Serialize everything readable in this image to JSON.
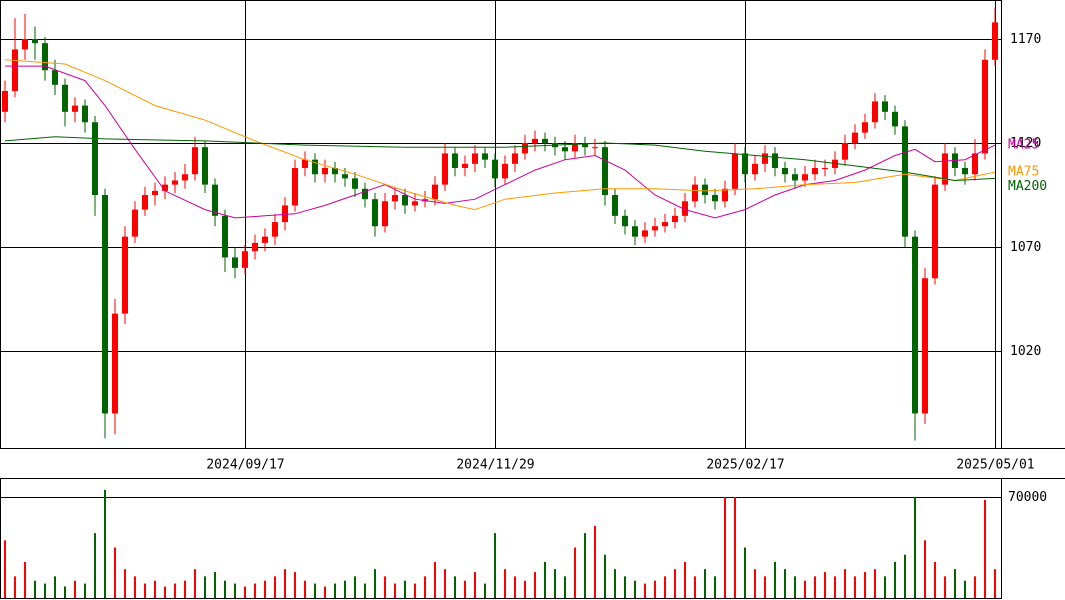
{
  "chart_data": {
    "type": "candlestick",
    "xlim": [
      -0.5,
      99.5
    ],
    "xticks": [
      {
        "value": 24,
        "label": "2024/09/17"
      },
      {
        "value": 49,
        "label": "2024/11/29"
      },
      {
        "value": 74,
        "label": "2025/02/17"
      },
      {
        "value": 99,
        "label": "2025/05/01"
      }
    ],
    "ylim": [
      973.4,
      1188.75
    ],
    "yticks": [
      1020,
      1070,
      1120,
      1170
    ],
    "grid": true,
    "up_color": "#ff0000",
    "down_color": "#006400",
    "candles": [
      [
        1135,
        1150,
        1130,
        1145
      ],
      [
        1145,
        1180,
        1142,
        1165
      ],
      [
        1165,
        1182,
        1160,
        1170
      ],
      [
        1170,
        1176,
        1160,
        1168
      ],
      [
        1168,
        1171,
        1150,
        1155
      ],
      [
        1155,
        1160,
        1143,
        1148
      ],
      [
        1148,
        1151,
        1128,
        1135
      ],
      [
        1135,
        1142,
        1130,
        1138
      ],
      [
        1138,
        1141,
        1125,
        1130
      ],
      [
        1130,
        1133,
        1085,
        1095
      ],
      [
        1095,
        1098,
        978,
        990
      ],
      [
        990,
        1045,
        980,
        1038
      ],
      [
        1038,
        1080,
        1033,
        1075
      ],
      [
        1075,
        1092,
        1072,
        1088
      ],
      [
        1088,
        1099,
        1085,
        1095
      ],
      [
        1095,
        1101,
        1090,
        1097
      ],
      [
        1097,
        1104,
        1093,
        1100
      ],
      [
        1100,
        1106,
        1096,
        1102
      ],
      [
        1102,
        1110,
        1098,
        1105
      ],
      [
        1105,
        1123,
        1102,
        1118
      ],
      [
        1118,
        1121,
        1096,
        1100
      ],
      [
        1100,
        1103,
        1080,
        1085
      ],
      [
        1085,
        1088,
        1058,
        1065
      ],
      [
        1065,
        1070,
        1055,
        1060
      ],
      [
        1060,
        1071,
        1057,
        1068
      ],
      [
        1068,
        1076,
        1064,
        1072
      ],
      [
        1072,
        1079,
        1068,
        1075
      ],
      [
        1075,
        1086,
        1071,
        1082
      ],
      [
        1082,
        1094,
        1078,
        1090
      ],
      [
        1090,
        1112,
        1087,
        1108
      ],
      [
        1108,
        1116,
        1104,
        1112
      ],
      [
        1112,
        1115,
        1101,
        1105
      ],
      [
        1105,
        1112,
        1101,
        1108
      ],
      [
        1108,
        1111,
        1101,
        1105
      ],
      [
        1105,
        1108,
        1099,
        1103
      ],
      [
        1103,
        1106,
        1094,
        1098
      ],
      [
        1098,
        1101,
        1089,
        1093
      ],
      [
        1093,
        1096,
        1075,
        1080
      ],
      [
        1080,
        1096,
        1077,
        1092
      ],
      [
        1092,
        1099,
        1088,
        1095
      ],
      [
        1095,
        1098,
        1086,
        1090
      ],
      [
        1090,
        1096,
        1087,
        1092
      ],
      [
        1092,
        1097,
        1089,
        1093
      ],
      [
        1093,
        1104,
        1090,
        1100
      ],
      [
        1100,
        1120,
        1097,
        1115
      ],
      [
        1115,
        1118,
        1104,
        1108
      ],
      [
        1108,
        1114,
        1104,
        1110
      ],
      [
        1110,
        1119,
        1106,
        1115
      ],
      [
        1115,
        1118,
        1108,
        1112
      ],
      [
        1112,
        1115,
        1099,
        1103
      ],
      [
        1103,
        1114,
        1100,
        1110
      ],
      [
        1110,
        1119,
        1106,
        1115
      ],
      [
        1115,
        1124,
        1112,
        1120
      ],
      [
        1120,
        1126,
        1116,
        1122
      ],
      [
        1122,
        1125,
        1116,
        1120
      ],
      [
        1120,
        1123,
        1114,
        1118
      ],
      [
        1118,
        1121,
        1112,
        1116
      ],
      [
        1116,
        1124,
        1113,
        1120
      ],
      [
        1120,
        1123,
        1114,
        1118
      ],
      [
        1118,
        1122,
        1114,
        1118
      ],
      [
        1118,
        1121,
        1090,
        1095
      ],
      [
        1095,
        1098,
        1081,
        1085
      ],
      [
        1085,
        1088,
        1076,
        1080
      ],
      [
        1080,
        1083,
        1071,
        1075
      ],
      [
        1075,
        1082,
        1072,
        1078
      ],
      [
        1078,
        1084,
        1075,
        1080
      ],
      [
        1080,
        1086,
        1077,
        1082
      ],
      [
        1082,
        1089,
        1079,
        1085
      ],
      [
        1085,
        1096,
        1082,
        1092
      ],
      [
        1092,
        1104,
        1089,
        1100
      ],
      [
        1100,
        1103,
        1091,
        1095
      ],
      [
        1095,
        1098,
        1088,
        1092
      ],
      [
        1092,
        1102,
        1089,
        1098
      ],
      [
        1098,
        1120,
        1095,
        1115
      ],
      [
        1115,
        1118,
        1101,
        1105
      ],
      [
        1105,
        1114,
        1102,
        1110
      ],
      [
        1110,
        1119,
        1106,
        1115
      ],
      [
        1115,
        1118,
        1104,
        1108
      ],
      [
        1108,
        1111,
        1101,
        1105
      ],
      [
        1105,
        1108,
        1098,
        1102
      ],
      [
        1102,
        1109,
        1099,
        1105
      ],
      [
        1105,
        1112,
        1102,
        1108
      ],
      [
        1108,
        1112,
        1104,
        1108
      ],
      [
        1108,
        1116,
        1105,
        1112
      ],
      [
        1112,
        1124,
        1109,
        1120
      ],
      [
        1120,
        1129,
        1117,
        1125
      ],
      [
        1125,
        1134,
        1122,
        1130
      ],
      [
        1130,
        1144,
        1127,
        1140
      ],
      [
        1140,
        1143,
        1131,
        1135
      ],
      [
        1135,
        1138,
        1124,
        1128
      ],
      [
        1128,
        1131,
        1070,
        1075
      ],
      [
        1075,
        1078,
        977,
        990
      ],
      [
        990,
        1060,
        985,
        1055
      ],
      [
        1055,
        1104,
        1052,
        1100
      ],
      [
        1100,
        1120,
        1097,
        1115
      ],
      [
        1115,
        1118,
        1104,
        1108
      ],
      [
        1108,
        1111,
        1100,
        1105
      ],
      [
        1105,
        1122,
        1102,
        1115
      ],
      [
        1115,
        1165,
        1112,
        1160
      ],
      [
        1160,
        1185,
        1157,
        1178
      ]
    ],
    "series": [
      {
        "name": "MA25",
        "color": "#cc0099",
        "x": [
          0,
          4,
          8,
          10,
          13,
          16,
          20,
          23,
          26,
          29,
          32,
          35,
          38,
          41,
          44,
          47,
          50,
          53,
          56,
          59,
          62,
          65,
          68,
          71,
          74,
          77,
          80,
          83,
          86,
          89,
          91,
          93,
          96,
          99
        ],
        "values": [
          1157,
          1157,
          1150,
          1138,
          1117,
          1097,
          1088,
          1084,
          1085,
          1086,
          1090,
          1095,
          1100,
          1093,
          1091,
          1093,
          1100,
          1107,
          1112,
          1114,
          1107,
          1095,
          1088,
          1084,
          1088,
          1095,
          1100,
          1102,
          1107,
          1114,
          1117,
          1111,
          1112,
          1119
        ]
      },
      {
        "name": "MA75",
        "color": "#ff9900",
        "x": [
          0,
          6,
          10,
          15,
          20,
          25,
          30,
          35,
          40,
          45,
          47,
          50,
          55,
          60,
          65,
          70,
          75,
          80,
          85,
          90,
          95,
          99
        ],
        "values": [
          1160,
          1158,
          1150,
          1138,
          1131,
          1121,
          1112,
          1105,
          1097,
          1090,
          1088,
          1093,
          1096,
          1098,
          1098,
          1097,
          1098,
          1100,
          1101,
          1105,
          1102,
          1106
        ]
      },
      {
        "name": "MA200",
        "color": "#006400",
        "x": [
          0,
          5,
          10,
          20,
          30,
          40,
          50,
          60,
          65,
          70,
          80,
          85,
          90,
          95,
          99
        ],
        "values": [
          1121,
          1123,
          1122,
          1121,
          1119,
          1118,
          1118,
          1120,
          1119,
          1116,
          1112,
          1109,
          1106,
          1102,
          1103
        ]
      }
    ],
    "volume": {
      "ylim": [
        0,
        81800
      ],
      "yticks": [
        70000
      ],
      "values": [
        40000,
        15000,
        25000,
        12000,
        10000,
        15000,
        8000,
        12000,
        10000,
        45000,
        75000,
        35000,
        20000,
        15000,
        10000,
        12000,
        8000,
        10000,
        12000,
        20000,
        15000,
        18000,
        12000,
        10000,
        8000,
        10000,
        12000,
        15000,
        20000,
        18000,
        12000,
        10000,
        8000,
        10000,
        12000,
        15000,
        10000,
        20000,
        15000,
        10000,
        12000,
        10000,
        15000,
        25000,
        20000,
        15000,
        12000,
        18000,
        10000,
        45000,
        20000,
        15000,
        12000,
        18000,
        25000,
        20000,
        15000,
        35000,
        45000,
        50000,
        30000,
        20000,
        15000,
        12000,
        10000,
        12000,
        15000,
        20000,
        25000,
        15000,
        20000,
        15000,
        70000,
        70000,
        35000,
        20000,
        15000,
        25000,
        20000,
        15000,
        12000,
        15000,
        18000,
        15000,
        20000,
        15000,
        18000,
        20000,
        15000,
        25000,
        30000,
        70000,
        40000,
        25000,
        15000,
        20000,
        12000,
        15000,
        68000,
        20000
      ]
    }
  }
}
